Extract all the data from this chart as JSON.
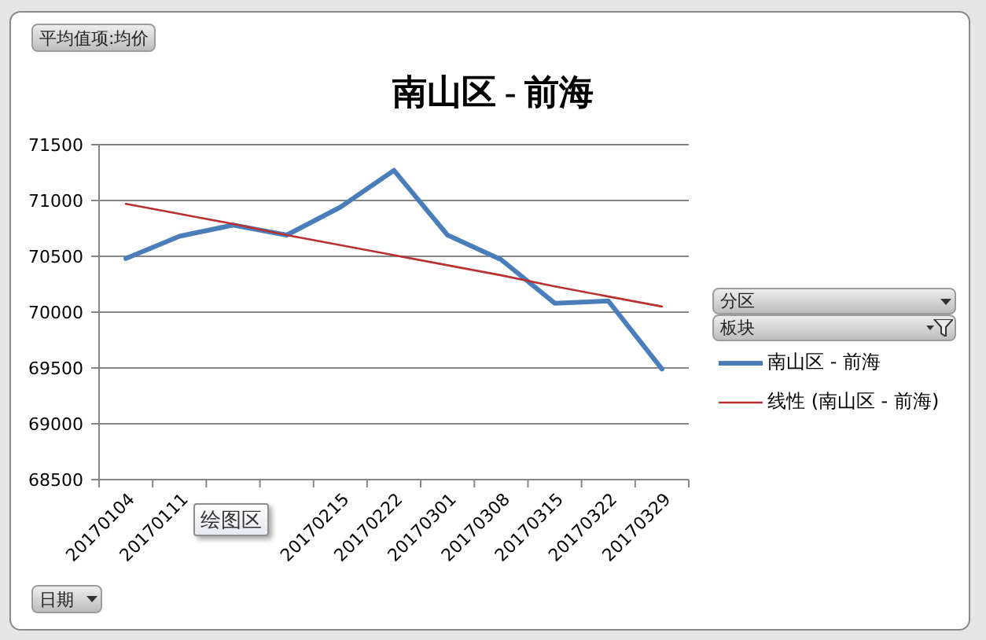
{
  "chart_data": {
    "type": "line",
    "title": "南山区 - 前海",
    "categories": [
      "20170104",
      "20170111",
      null,
      null,
      "20170215",
      "20170222",
      "20170301",
      "20170308",
      "20170315",
      "20170322",
      "20170329"
    ],
    "series": [
      {
        "name": "南山区 - 前海",
        "color": "#4a7ebb",
        "values": [
          70480,
          70680,
          70780,
          70690,
          70940,
          71270,
          70690,
          70470,
          70080,
          70100,
          69490
        ]
      },
      {
        "name": "线性 (南山区 - 前海)",
        "type": "line",
        "color": "#b83232",
        "values": [
          70970,
          70880,
          70790,
          70690,
          70600,
          70510,
          70420,
          70330,
          70230,
          70140,
          70050
        ]
      }
    ],
    "ylim": [
      68500,
      71500
    ],
    "yticks": [
      68500,
      69000,
      69500,
      70000,
      70500,
      71000,
      71500
    ],
    "grid": "y",
    "legend": "right",
    "marker": "none",
    "line_style": "solid",
    "annotations": [
      "平均值项:均价",
      "分区",
      "板块",
      "日期",
      "绘图区"
    ]
  }
}
